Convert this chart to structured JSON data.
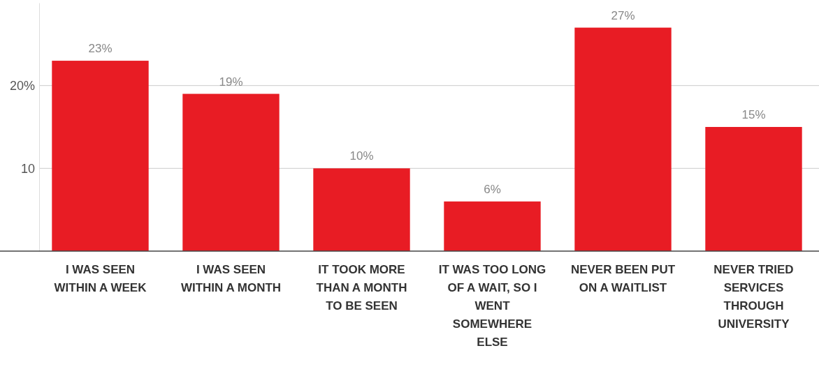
{
  "chart_data": {
    "type": "bar",
    "categories": [
      "I WAS SEEN WITHIN A WEEK",
      "I WAS SEEN WITHIN A MONTH",
      "IT TOOK MORE THAN A MONTH TO BE SEEN",
      "IT WAS TOO LONG OF A WAIT, SO I WENT SOMEWHERE ELSE",
      "NEVER BEEN PUT ON A WAITLIST",
      "NEVER TRIED SERVICES THROUGH UNIVERSITY"
    ],
    "values": [
      23,
      19,
      10,
      6,
      27,
      15
    ],
    "ylim": [
      0,
      30
    ],
    "value_labels": [
      "23%",
      "19%",
      "10%",
      "6%",
      "27%",
      "15%"
    ],
    "color": "#e81c24",
    "yticks": [
      {
        "value": 10,
        "label": "10"
      },
      {
        "value": 20,
        "label": "20%"
      }
    ],
    "grid": "y"
  }
}
